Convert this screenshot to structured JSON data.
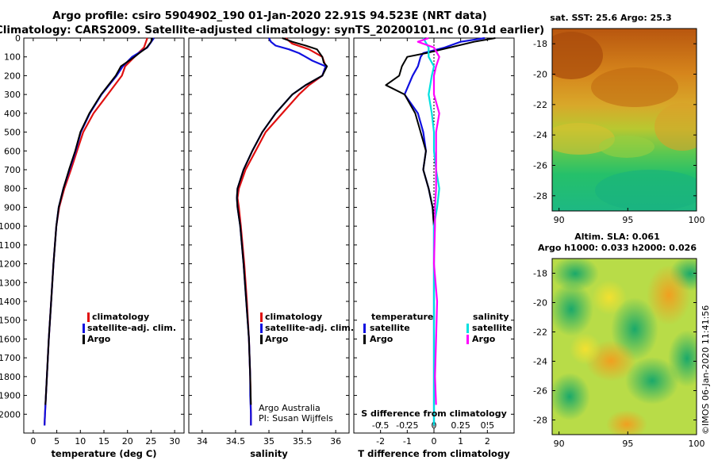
{
  "title_line1": "Argo profile: csiro 5904902_190 01-Jan-2020 22.91S 94.523E (NRT data)",
  "title_line2": "Climatology: CARS2009. Satellite-adjusted climatology: synTS_20200101.nc (0.91d earlier)",
  "sst_title": "sat. SST: 25.6 Argo: 25.3",
  "sla_title1": "Altim. SLA: 0.061",
  "sla_title2": "Argo h1000: 0.033 h2000: 0.026",
  "credit1": "Argo Australia",
  "credit2": "PI: Susan Wijffels",
  "imos_stamp": "©IMOS 06-Jan-2020 11:41:56",
  "colors": {
    "climatology": "#e01010",
    "satellite": "#1010e0",
    "argo": "#000000",
    "sal_satellite": "#00e0e0",
    "sal_argo": "#ff00ff"
  },
  "chart_data": [
    {
      "type": "line",
      "title": "",
      "xlabel": "temperature (deg C)",
      "ylabel": "",
      "xlim": [
        -2,
        32
      ],
      "ylim": [
        2100,
        0
      ],
      "xticks": [
        0,
        5,
        10,
        15,
        20,
        25,
        30
      ],
      "yticks": [
        0,
        100,
        200,
        300,
        400,
        500,
        600,
        700,
        800,
        900,
        1000,
        1100,
        1200,
        1300,
        1400,
        1500,
        1600,
        1700,
        1800,
        1900,
        2000
      ],
      "legend": [
        "climatology",
        "satellite-adj. clim.",
        "Argo"
      ],
      "legend_position": "lower-right",
      "series": [
        {
          "name": "climatology",
          "color": "#e01010",
          "depth": [
            0,
            50,
            100,
            150,
            200,
            300,
            400,
            500,
            600,
            700,
            800,
            900,
            1000,
            1200,
            1400,
            1600,
            1800,
            2000,
            2060
          ],
          "values": [
            24.2,
            23.5,
            21.5,
            19.5,
            18.8,
            15.8,
            12.8,
            10.6,
            9.3,
            8.0,
            6.6,
            5.5,
            4.9,
            4.3,
            3.8,
            3.3,
            2.9,
            2.5,
            2.4
          ]
        },
        {
          "name": "satellite-adj. clim.",
          "color": "#1010e0",
          "depth": [
            0,
            50,
            100,
            150,
            200,
            300,
            400,
            500,
            600,
            700,
            800,
            900,
            1000,
            1200,
            1400,
            1600,
            1800,
            2000,
            2060
          ],
          "values": [
            25.6,
            24.2,
            21.0,
            19.0,
            17.7,
            14.5,
            12.0,
            10.1,
            9.0,
            7.7,
            6.4,
            5.4,
            4.9,
            4.3,
            3.8,
            3.3,
            2.9,
            2.5,
            2.4
          ]
        },
        {
          "name": "Argo",
          "color": "#000000",
          "depth": [
            0,
            20,
            50,
            80,
            100,
            150,
            200,
            300,
            400,
            500,
            600,
            700,
            800,
            900,
            1000,
            1200,
            1400,
            1600,
            1800,
            1950
          ],
          "values": [
            25.3,
            25.0,
            24.1,
            22.5,
            21.5,
            18.6,
            17.5,
            14.4,
            11.9,
            10.0,
            8.9,
            7.6,
            6.4,
            5.4,
            4.9,
            4.3,
            3.8,
            3.3,
            2.9,
            2.6
          ]
        }
      ]
    },
    {
      "type": "line",
      "title": "",
      "xlabel": "salinity",
      "ylabel": "",
      "xlim": [
        33.8,
        36.2
      ],
      "ylim": [
        2100,
        0
      ],
      "xticks": [
        34,
        34.5,
        35,
        35.5,
        36
      ],
      "xtick_labels": [
        "34",
        "34.5",
        "35",
        "35.5",
        "36"
      ],
      "legend": [
        "climatology",
        "satellite-adj. clim.",
        "Argo"
      ],
      "legend_position": "lower-right",
      "series": [
        {
          "name": "climatology",
          "color": "#e01010",
          "depth": [
            0,
            30,
            60,
            100,
            150,
            200,
            250,
            300,
            400,
            500,
            600,
            700,
            800,
            850,
            900,
            1000,
            1200,
            1400,
            1600,
            1800,
            2000,
            2060
          ],
          "values": [
            35.25,
            35.35,
            35.6,
            35.8,
            35.85,
            35.8,
            35.6,
            35.45,
            35.2,
            34.95,
            34.8,
            34.65,
            34.55,
            34.53,
            34.55,
            34.58,
            34.63,
            34.67,
            34.7,
            34.72,
            34.73,
            34.73
          ]
        },
        {
          "name": "satellite-adj. clim.",
          "color": "#1010e0",
          "depth": [
            0,
            20,
            40,
            60,
            80,
            100,
            120,
            150,
            200,
            250,
            300,
            400,
            500,
            600,
            700,
            800,
            850,
            900,
            1000,
            1200,
            1400,
            1600,
            1800,
            1900,
            2000,
            2060
          ],
          "values": [
            35.0,
            35.03,
            35.1,
            35.3,
            35.45,
            35.55,
            35.65,
            35.85,
            35.8,
            35.55,
            35.35,
            35.1,
            34.9,
            34.75,
            34.62,
            34.53,
            34.52,
            34.53,
            34.57,
            34.62,
            34.66,
            34.7,
            34.72,
            34.72,
            34.73,
            34.73
          ]
        },
        {
          "name": "Argo",
          "color": "#000000",
          "depth": [
            0,
            20,
            40,
            60,
            100,
            130,
            150,
            200,
            250,
            300,
            400,
            500,
            600,
            700,
            800,
            850,
            900,
            1000,
            1200,
            1400,
            1600,
            1800,
            1950
          ],
          "values": [
            35.2,
            35.35,
            35.55,
            35.72,
            35.8,
            35.82,
            35.87,
            35.8,
            35.55,
            35.35,
            35.1,
            34.9,
            34.75,
            34.62,
            34.53,
            34.52,
            34.53,
            34.57,
            34.62,
            34.66,
            34.7,
            34.72,
            34.73
          ]
        }
      ]
    },
    {
      "type": "line",
      "title": "",
      "xlabel": "T difference from climatology",
      "xlabel2": "S difference from climatology",
      "ylabel": "",
      "xlim": [
        -3,
        3
      ],
      "x2lim": [
        -0.75,
        0.75
      ],
      "ylim": [
        2100,
        0
      ],
      "xticks": [
        -2,
        -1,
        0,
        1,
        2
      ],
      "x2ticks": [
        -0.5,
        -0.25,
        0,
        0.25,
        0.5
      ],
      "legend_headings": [
        "temperature",
        "salinity"
      ],
      "legend": [
        "satellite",
        "Argo",
        "satellite",
        "Argo"
      ],
      "legend_position": "lower",
      "series": [
        {
          "name": "temperature satellite",
          "color": "#1010e0",
          "unit": "T",
          "depth": [
            0,
            20,
            50,
            80,
            100,
            150,
            200,
            300,
            400,
            500,
            600,
            700,
            800,
            900,
            1000,
            1200,
            1400,
            1600,
            1800,
            2000,
            2060
          ],
          "values": [
            1.9,
            1.0,
            0.4,
            -0.4,
            -0.5,
            -0.6,
            -0.8,
            -1.1,
            -0.6,
            -0.4,
            -0.3,
            -0.4,
            -0.2,
            -0.05,
            0.0,
            0.0,
            0.0,
            0.0,
            0.0,
            0.0,
            0.0
          ]
        },
        {
          "name": "temperature Argo",
          "color": "#000000",
          "unit": "T",
          "depth": [
            0,
            20,
            50,
            80,
            100,
            150,
            200,
            250,
            300,
            400,
            500,
            600,
            700,
            800,
            900,
            1000,
            1200,
            1400,
            1600,
            1800,
            1950
          ],
          "values": [
            2.3,
            1.5,
            0.6,
            -0.3,
            -1.0,
            -1.2,
            -1.3,
            -1.8,
            -1.1,
            -0.7,
            -0.5,
            -0.3,
            -0.4,
            -0.2,
            -0.05,
            0.0,
            0.0,
            0.0,
            0.0,
            0.0,
            0.0
          ]
        },
        {
          "name": "salinity satellite",
          "color": "#00e0e0",
          "unit": "S",
          "depth": [
            0,
            50,
            100,
            150,
            200,
            300,
            400,
            500,
            600,
            700,
            800,
            900,
            1000,
            1200,
            1400,
            1600,
            1800,
            2000,
            2060
          ],
          "values": [
            -0.1,
            -0.05,
            -0.05,
            0.0,
            -0.02,
            -0.05,
            -0.02,
            0.0,
            0.0,
            0.02,
            0.05,
            0.03,
            0.0,
            0.0,
            0.0,
            0.0,
            0.0,
            0.0,
            0.0
          ]
        },
        {
          "name": "salinity Argo",
          "color": "#ff00ff",
          "unit": "S",
          "depth": [
            0,
            20,
            50,
            100,
            150,
            200,
            250,
            300,
            400,
            500,
            600,
            700,
            800,
            900,
            1000,
            1200,
            1400,
            1600,
            1800,
            1950
          ],
          "values": [
            -0.05,
            -0.15,
            0.0,
            0.05,
            0.02,
            0.0,
            0.0,
            0.0,
            0.05,
            0.02,
            0.02,
            0.02,
            0.02,
            0.01,
            0.01,
            0.0,
            0.03,
            0.02,
            0.01,
            0.02
          ]
        }
      ]
    },
    {
      "type": "heatmap",
      "title": "sat. SST: 25.6 Argo: 25.3",
      "xlim": [
        89.5,
        100
      ],
      "ylim": [
        -29,
        -17
      ],
      "xticks": [
        90,
        95,
        100
      ],
      "yticks": [
        -18,
        -20,
        -22,
        -24,
        -26,
        -28
      ],
      "argo_position": {
        "lon": 94.523,
        "lat": -22.91
      }
    },
    {
      "type": "heatmap",
      "title": "Altim. SLA: 0.061",
      "xlim": [
        89.5,
        100
      ],
      "ylim": [
        -29,
        -17
      ],
      "xticks": [
        90,
        95,
        100
      ],
      "yticks": [
        -18,
        -20,
        -22,
        -24,
        -26,
        -28
      ],
      "argo_position": {
        "lon": 94.523,
        "lat": -22.91
      }
    }
  ]
}
